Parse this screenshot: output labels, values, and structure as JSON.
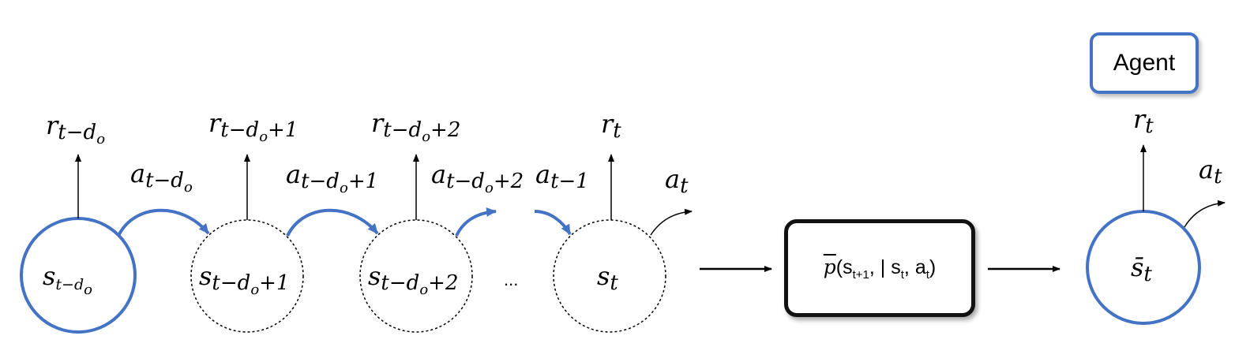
{
  "agent_label": "Agent",
  "dots": "...",
  "model": {
    "p": "p",
    "open": "(s",
    "s_next_sub": "t+1",
    "mid": ", | s",
    "s_sub": "t",
    "comma": ", a",
    "a_sub": "t",
    "close": ")"
  },
  "states": [
    {
      "base": "s",
      "sub": "t−d",
      "subsub": "o",
      "tail": ""
    },
    {
      "base": "s",
      "sub": "t−d",
      "subsub": "o",
      "tail": "+1"
    },
    {
      "base": "s",
      "sub": "t−d",
      "subsub": "o",
      "tail": "+2"
    },
    {
      "base": "s",
      "sub": "t",
      "subsub": "",
      "tail": ""
    },
    {
      "base": "s̄",
      "sub": "t",
      "subsub": "",
      "tail": ""
    }
  ],
  "rewards": [
    {
      "base": "r",
      "sub": "t−d",
      "subsub": "o",
      "tail": ""
    },
    {
      "base": "r",
      "sub": "t−d",
      "subsub": "o",
      "tail": "+1"
    },
    {
      "base": "r",
      "sub": "t−d",
      "subsub": "o",
      "tail": "+2"
    },
    {
      "base": "r",
      "sub": "t",
      "subsub": "",
      "tail": ""
    },
    {
      "base": "r",
      "sub": "t",
      "subsub": "",
      "tail": ""
    }
  ],
  "actions": [
    {
      "base": "a",
      "sub": "t−d",
      "subsub": "o",
      "tail": ""
    },
    {
      "base": "a",
      "sub": "t−d",
      "subsub": "o",
      "tail": "+1"
    },
    {
      "base": "a",
      "sub": "t−d",
      "subsub": "o",
      "tail": "+2"
    },
    {
      "base": "a",
      "sub": "t−1",
      "subsub": "",
      "tail": ""
    },
    {
      "base": "a",
      "sub": "t",
      "subsub": "",
      "tail": ""
    },
    {
      "base": "a",
      "sub": "t",
      "subsub": "",
      "tail": ""
    }
  ],
  "colors": {
    "accent": "#4472c4",
    "line": "#000000"
  }
}
